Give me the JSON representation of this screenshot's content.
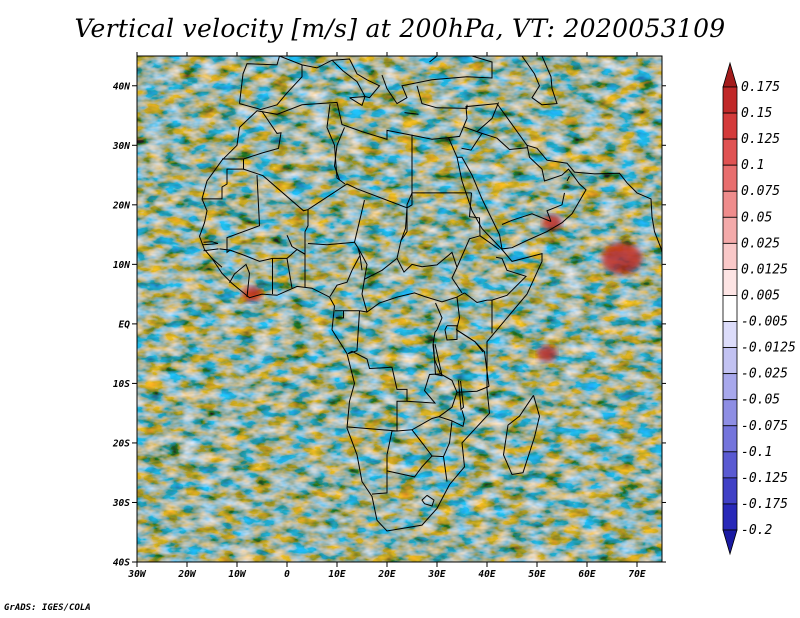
{
  "title": "Vertical velocity [m/s] at 200hPa, VT: 2020053109",
  "footer": "GrADS: IGES/COLA",
  "map": {
    "lon_range": [
      -30,
      75
    ],
    "lat_range": [
      -40,
      45
    ],
    "lon_ticks": [
      {
        "value": -30,
        "label": "30W"
      },
      {
        "value": -20,
        "label": "20W"
      },
      {
        "value": -10,
        "label": "10W"
      },
      {
        "value": 0,
        "label": "0"
      },
      {
        "value": 10,
        "label": "10E"
      },
      {
        "value": 20,
        "label": "20E"
      },
      {
        "value": 30,
        "label": "30E"
      },
      {
        "value": 40,
        "label": "40E"
      },
      {
        "value": 50,
        "label": "50E"
      },
      {
        "value": 60,
        "label": "60E"
      },
      {
        "value": 70,
        "label": "70E"
      }
    ],
    "lat_ticks": [
      {
        "value": 40,
        "label": "40N"
      },
      {
        "value": 30,
        "label": "30N"
      },
      {
        "value": 20,
        "label": "20N"
      },
      {
        "value": 10,
        "label": "10N"
      },
      {
        "value": 0,
        "label": "EQ"
      },
      {
        "value": -10,
        "label": "10S"
      },
      {
        "value": -20,
        "label": "20S"
      },
      {
        "value": -30,
        "label": "30S"
      },
      {
        "value": -40,
        "label": "40S"
      }
    ],
    "field_features": [
      {
        "lon": 67,
        "lat": 11,
        "value": 0.15
      },
      {
        "lon": -7,
        "lat": 5,
        "value": 0.1
      },
      {
        "lon": 52,
        "lat": -5,
        "value": 0.1
      },
      {
        "lon": 53,
        "lat": 17,
        "value": 0.1
      }
    ]
  },
  "colorbar": {
    "levels": [
      "0.175",
      "0.15",
      "0.125",
      "0.1",
      "0.075",
      "0.05",
      "0.025",
      "0.0125",
      "0.005",
      "-0.005",
      "-0.0125",
      "-0.025",
      "-0.05",
      "-0.075",
      "-0.1",
      "-0.125",
      "-0.175",
      "-0.2"
    ],
    "colors": [
      "#a31c1c",
      "#c02828",
      "#d43a3a",
      "#e05252",
      "#e86e6e",
      "#ef8c8c",
      "#f4aaaa",
      "#f9c8c8",
      "#fde4e4",
      "#ffffff",
      "#dcdcfa",
      "#c2c2f2",
      "#a8a8ec",
      "#8e8ee4",
      "#7474dc",
      "#5a5ad2",
      "#4040c6",
      "#2828b8",
      "#1a1aa2"
    ]
  },
  "palette": {
    "coast": "#000000",
    "frame": "#000000"
  }
}
